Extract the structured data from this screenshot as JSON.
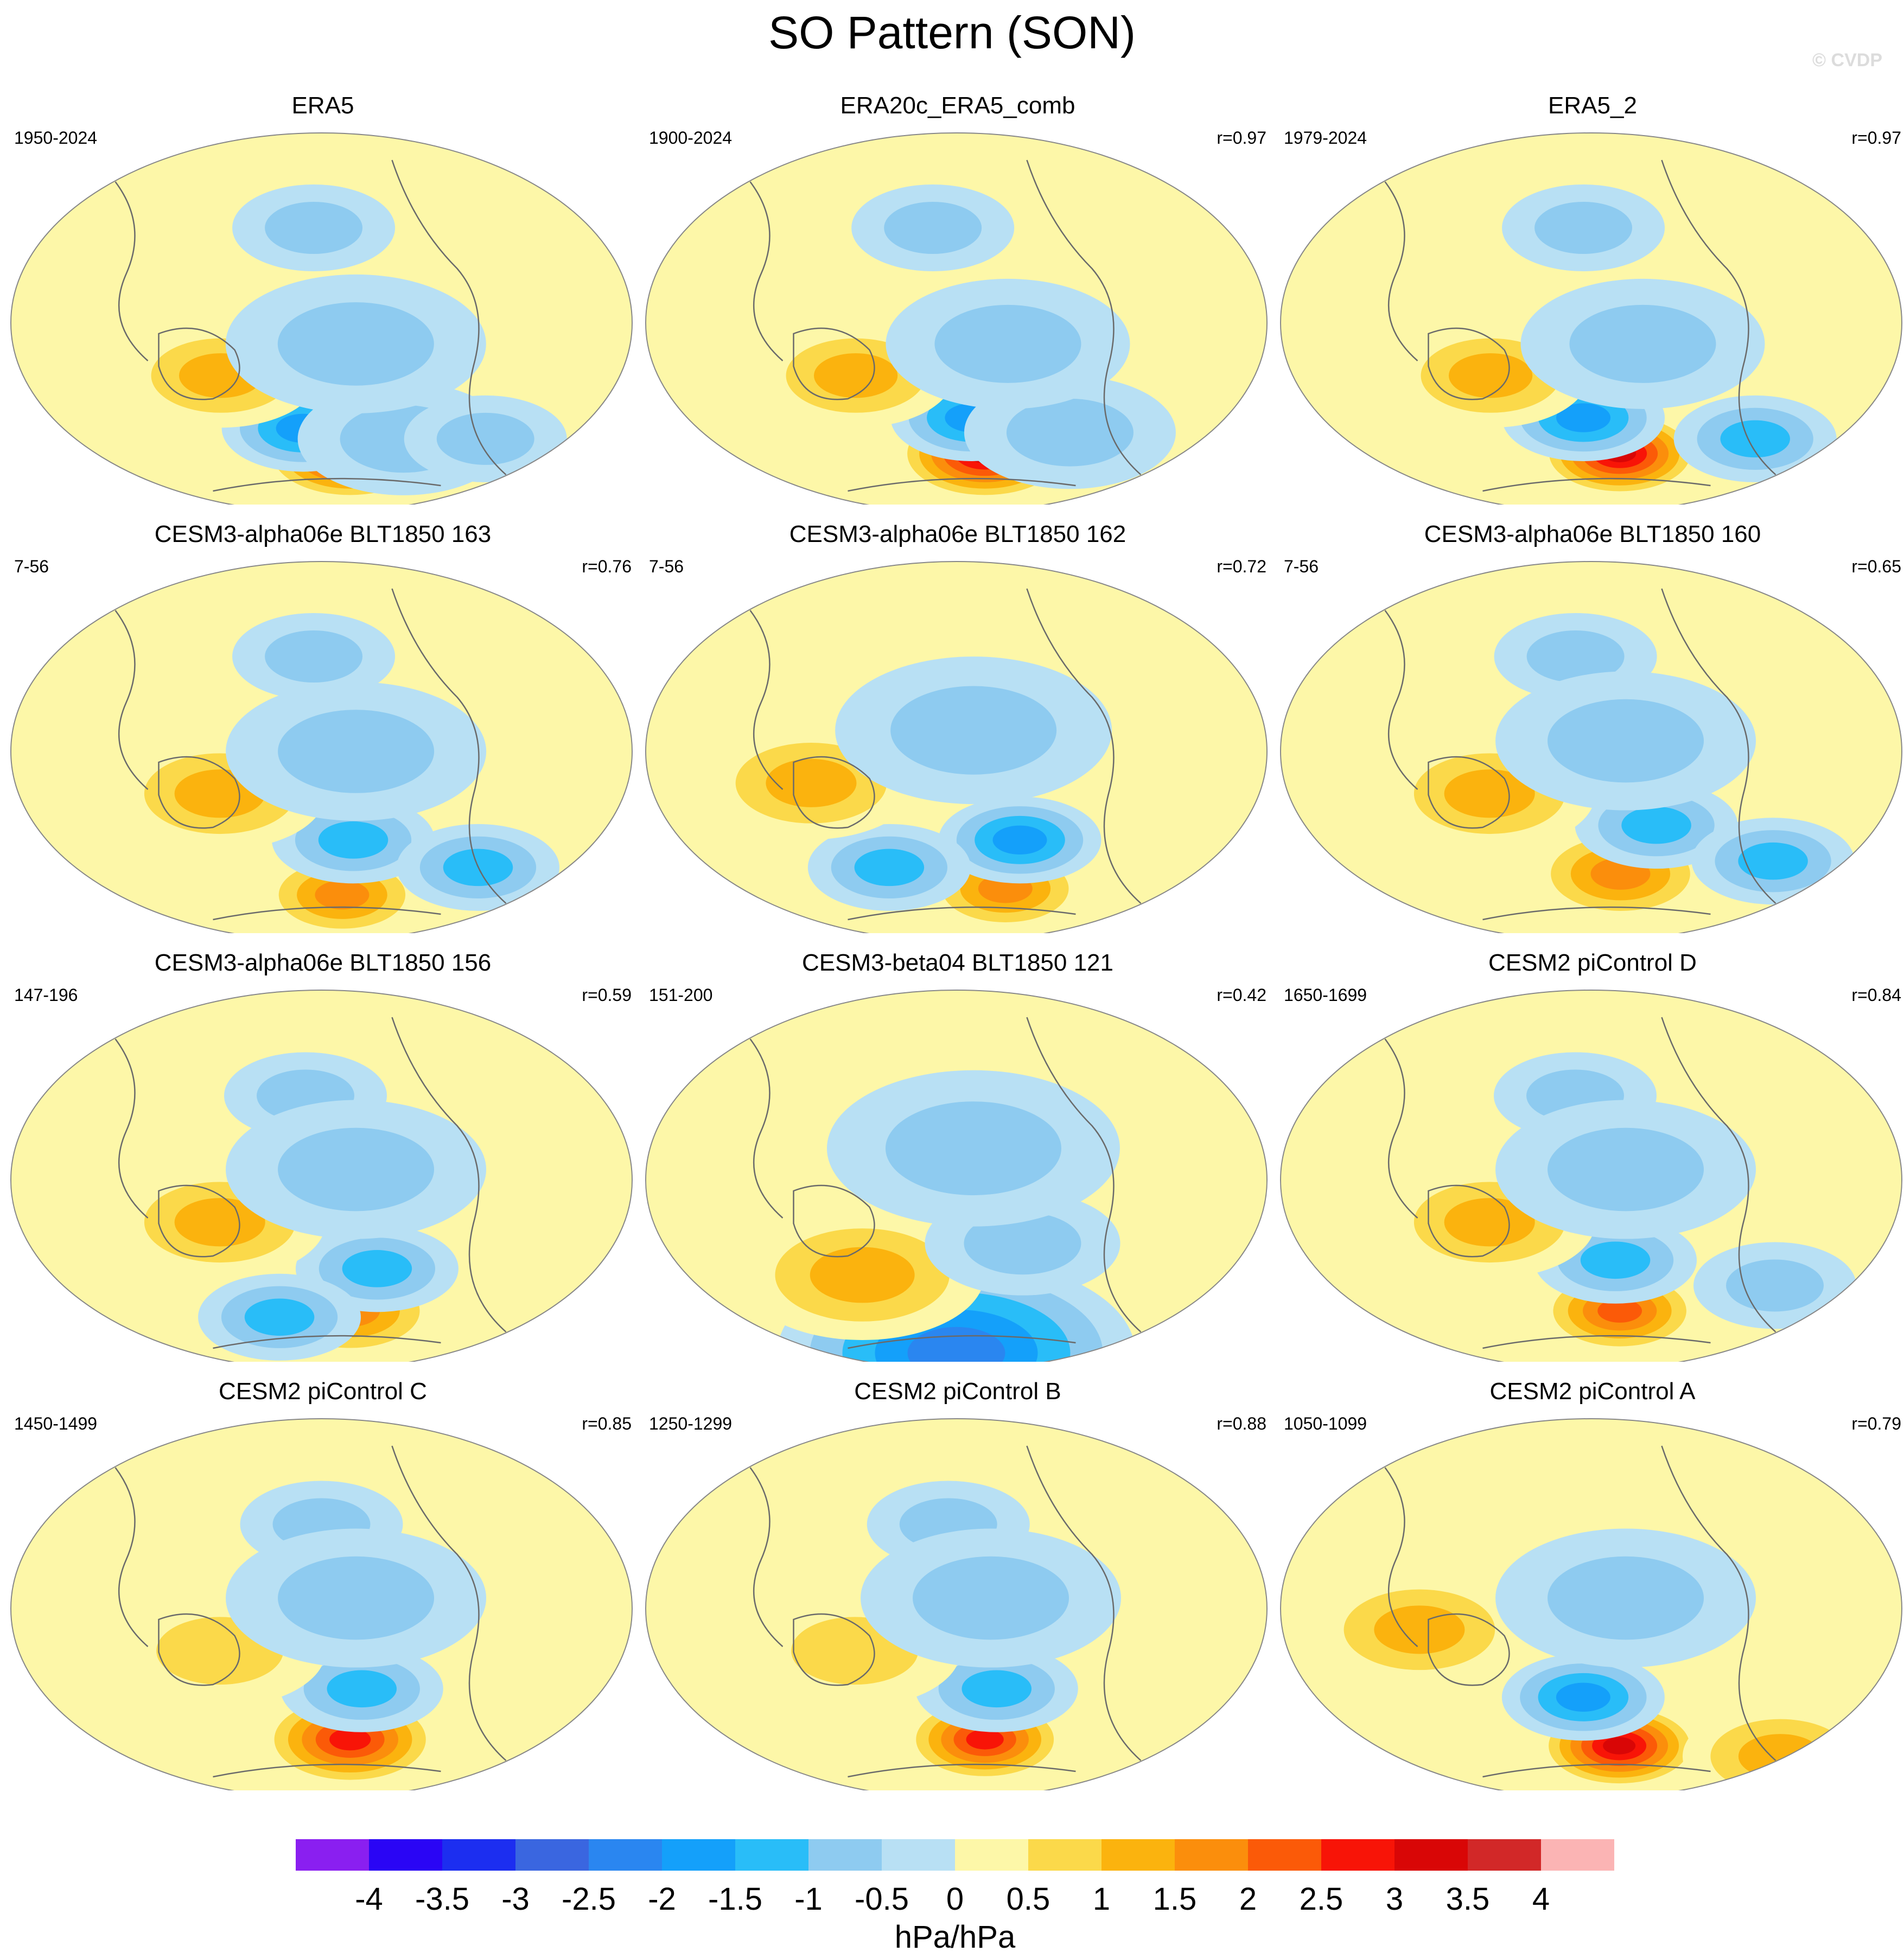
{
  "title": "SO Pattern (SON)",
  "watermark": "© CVDP",
  "chart_data": {
    "type": "heatmap",
    "map_projection": "Robinson-like global ellipse, Pacific-centered",
    "units": "hPa/hPa",
    "colorbar": {
      "levels": [
        -4,
        -3.5,
        -3,
        -2.5,
        -2,
        -1.5,
        -1,
        -0.5,
        0,
        0.5,
        1,
        1.5,
        2,
        2.5,
        3,
        3.5,
        4
      ],
      "tick_labels": [
        "-4",
        "-3.5",
        "-3",
        "-2.5",
        "-2",
        "-1.5",
        "-1",
        "-0.5",
        "0",
        "0.5",
        "1",
        "1.5",
        "2",
        "2.5",
        "3",
        "3.5",
        "4"
      ],
      "colors": [
        "#8a1ff0",
        "#2a05f5",
        "#1c2ef0",
        "#3a66e0",
        "#2a86f0",
        "#14a0fa",
        "#29bdf8",
        "#8ecbf0",
        "#b8e0f4",
        "#fdf7a8",
        "#fbd94a",
        "#fbb30e",
        "#fb8e0c",
        "#fb5a08",
        "#f81407",
        "#d90606",
        "#d22828",
        "#fbb4b4"
      ]
    },
    "panels": [
      {
        "title": "ERA5",
        "period": "1950-2024",
        "r": "",
        "features": [
          {
            "lon": 200,
            "lat": -62,
            "value": 3.4,
            "spread": 1.1
          },
          {
            "lon": 168,
            "lat": -50,
            "value": -1.6,
            "spread": 1.0
          },
          {
            "lon": 235,
            "lat": -55,
            "value": -0.9,
            "spread": 1.3
          },
          {
            "lon": 290,
            "lat": -55,
            "value": -0.9,
            "spread": 1.0
          },
          {
            "lon": 120,
            "lat": -25,
            "value": 1.1,
            "spread": 1.2
          },
          {
            "lon": 175,
            "lat": 45,
            "value": -0.7,
            "spread": 1.0
          },
          {
            "lon": 200,
            "lat": -10,
            "value": -0.6,
            "spread": 1.6
          }
        ]
      },
      {
        "title": "ERA20c_ERA5_comb",
        "period": "1900-2024",
        "r": "r=0.97",
        "features": [
          {
            "lon": 200,
            "lat": -62,
            "value": 3.3,
            "spread": 1.1
          },
          {
            "lon": 190,
            "lat": -45,
            "value": -1.6,
            "spread": 1.0
          },
          {
            "lon": 255,
            "lat": -52,
            "value": -0.9,
            "spread": 1.3
          },
          {
            "lon": 120,
            "lat": -25,
            "value": 1.2,
            "spread": 1.2
          },
          {
            "lon": 165,
            "lat": 45,
            "value": -0.8,
            "spread": 1.0
          },
          {
            "lon": 210,
            "lat": -10,
            "value": -0.6,
            "spread": 1.5
          }
        ]
      },
      {
        "title": "ERA5_2",
        "period": "1979-2024",
        "r": "r=0.97",
        "features": [
          {
            "lon": 200,
            "lat": -62,
            "value": 3.3,
            "spread": 1.0
          },
          {
            "lon": 175,
            "lat": -45,
            "value": -1.7,
            "spread": 1.0
          },
          {
            "lon": 290,
            "lat": -55,
            "value": -1.5,
            "spread": 1.0
          },
          {
            "lon": 120,
            "lat": -25,
            "value": 1.2,
            "spread": 1.2
          },
          {
            "lon": 175,
            "lat": 45,
            "value": -0.8,
            "spread": 1.0
          },
          {
            "lon": 210,
            "lat": -10,
            "value": -0.6,
            "spread": 1.5
          }
        ]
      },
      {
        "title": "CESM3-alpha06e BLT1850 163",
        "period": "7-56",
        "r": "r=0.76",
        "features": [
          {
            "lon": 195,
            "lat": -68,
            "value": 1.7,
            "spread": 1.0
          },
          {
            "lon": 200,
            "lat": -42,
            "value": -1.4,
            "spread": 1.0
          },
          {
            "lon": 285,
            "lat": -55,
            "value": -1.5,
            "spread": 1.0
          },
          {
            "lon": 120,
            "lat": -20,
            "value": 1.1,
            "spread": 1.3
          },
          {
            "lon": 175,
            "lat": 45,
            "value": -0.7,
            "spread": 1.0
          },
          {
            "lon": 200,
            "lat": 0,
            "value": -0.6,
            "spread": 1.6
          }
        ]
      },
      {
        "title": "CESM3-alpha06e BLT1850 162",
        "period": "7-56",
        "r": "r=0.72",
        "features": [
          {
            "lon": 215,
            "lat": -65,
            "value": 1.8,
            "spread": 1.0
          },
          {
            "lon": 220,
            "lat": -42,
            "value": -1.8,
            "spread": 1.0
          },
          {
            "lon": 135,
            "lat": -55,
            "value": -1.1,
            "spread": 1.0
          },
          {
            "lon": 95,
            "lat": -15,
            "value": 1.2,
            "spread": 1.3
          },
          {
            "lon": 190,
            "lat": 10,
            "value": -0.6,
            "spread": 1.7
          }
        ]
      },
      {
        "title": "CESM3-alpha06e BLT1850 160",
        "period": "7-56",
        "r": "r=0.65",
        "features": [
          {
            "lon": 200,
            "lat": -58,
            "value": 1.7,
            "spread": 1.1
          },
          {
            "lon": 220,
            "lat": -35,
            "value": -1.5,
            "spread": 1.0
          },
          {
            "lon": 300,
            "lat": -52,
            "value": -1.5,
            "spread": 1.0
          },
          {
            "lon": 120,
            "lat": -20,
            "value": 1.1,
            "spread": 1.3
          },
          {
            "lon": 170,
            "lat": 45,
            "value": -0.7,
            "spread": 1.0
          },
          {
            "lon": 200,
            "lat": 5,
            "value": -0.6,
            "spread": 1.6
          }
        ]
      },
      {
        "title": "CESM3-alpha06e BLT1850 156",
        "period": "147-196",
        "r": "r=0.59",
        "features": [
          {
            "lon": 200,
            "lat": -62,
            "value": 1.6,
            "spread": 1.1
          },
          {
            "lon": 215,
            "lat": -42,
            "value": -1.4,
            "spread": 1.0
          },
          {
            "lon": 150,
            "lat": -65,
            "value": -1.2,
            "spread": 1.0
          },
          {
            "lon": 120,
            "lat": -20,
            "value": 1.1,
            "spread": 1.3
          },
          {
            "lon": 170,
            "lat": 40,
            "value": -0.7,
            "spread": 1.0
          },
          {
            "lon": 200,
            "lat": 5,
            "value": -0.6,
            "spread": 1.6
          }
        ]
      },
      {
        "title": "CESM3-beta04 BLT1850 121",
        "period": "151-200",
        "r": "r=0.42",
        "features": [
          {
            "lon": 180,
            "lat": -82,
            "value": -2.3,
            "spread": 2.2
          },
          {
            "lon": 120,
            "lat": -45,
            "value": 1.3,
            "spread": 1.5
          },
          {
            "lon": 220,
            "lat": -30,
            "value": -0.8,
            "spread": 1.2
          },
          {
            "lon": 190,
            "lat": 15,
            "value": -0.6,
            "spread": 1.8
          }
        ]
      },
      {
        "title": "CESM2 piControl D",
        "period": "1650-1699",
        "r": "r=0.84",
        "features": [
          {
            "lon": 200,
            "lat": -62,
            "value": 2.3,
            "spread": 1.0
          },
          {
            "lon": 195,
            "lat": -38,
            "value": -1.4,
            "spread": 1.0
          },
          {
            "lon": 300,
            "lat": -50,
            "value": -0.8,
            "spread": 1.0
          },
          {
            "lon": 120,
            "lat": -20,
            "value": 1.1,
            "spread": 1.3
          },
          {
            "lon": 170,
            "lat": 40,
            "value": -0.7,
            "spread": 1.0
          },
          {
            "lon": 200,
            "lat": 5,
            "value": -0.6,
            "spread": 1.6
          }
        ]
      },
      {
        "title": "CESM2 piControl C",
        "period": "1450-1499",
        "r": "r=0.85",
        "features": [
          {
            "lon": 200,
            "lat": -62,
            "value": 2.6,
            "spread": 1.1
          },
          {
            "lon": 205,
            "lat": -38,
            "value": -1.3,
            "spread": 1.0
          },
          {
            "lon": 120,
            "lat": -20,
            "value": 1.0,
            "spread": 1.3
          },
          {
            "lon": 180,
            "lat": 40,
            "value": -0.6,
            "spread": 1.0
          },
          {
            "lon": 200,
            "lat": 5,
            "value": -0.6,
            "spread": 1.6
          }
        ]
      },
      {
        "title": "CESM2 piControl B",
        "period": "1250-1299",
        "r": "r=0.88",
        "features": [
          {
            "lon": 200,
            "lat": -62,
            "value": 2.7,
            "spread": 1.0
          },
          {
            "lon": 205,
            "lat": -38,
            "value": -1.3,
            "spread": 1.0
          },
          {
            "lon": 120,
            "lat": -20,
            "value": 1.0,
            "spread": 1.3
          },
          {
            "lon": 175,
            "lat": 40,
            "value": -0.6,
            "spread": 1.0
          },
          {
            "lon": 200,
            "lat": 5,
            "value": -0.6,
            "spread": 1.6
          }
        ]
      },
      {
        "title": "CESM2 piControl A",
        "period": "1050-1099",
        "r": "r=0.79",
        "features": [
          {
            "lon": 200,
            "lat": -65,
            "value": 3.2,
            "spread": 1.0
          },
          {
            "lon": 175,
            "lat": -42,
            "value": -1.9,
            "spread": 1.0
          },
          {
            "lon": 320,
            "lat": -70,
            "value": 1.4,
            "spread": 1.2
          },
          {
            "lon": 80,
            "lat": -10,
            "value": 1.1,
            "spread": 1.3
          },
          {
            "lon": 200,
            "lat": 5,
            "value": -0.6,
            "spread": 1.6
          }
        ]
      }
    ]
  }
}
